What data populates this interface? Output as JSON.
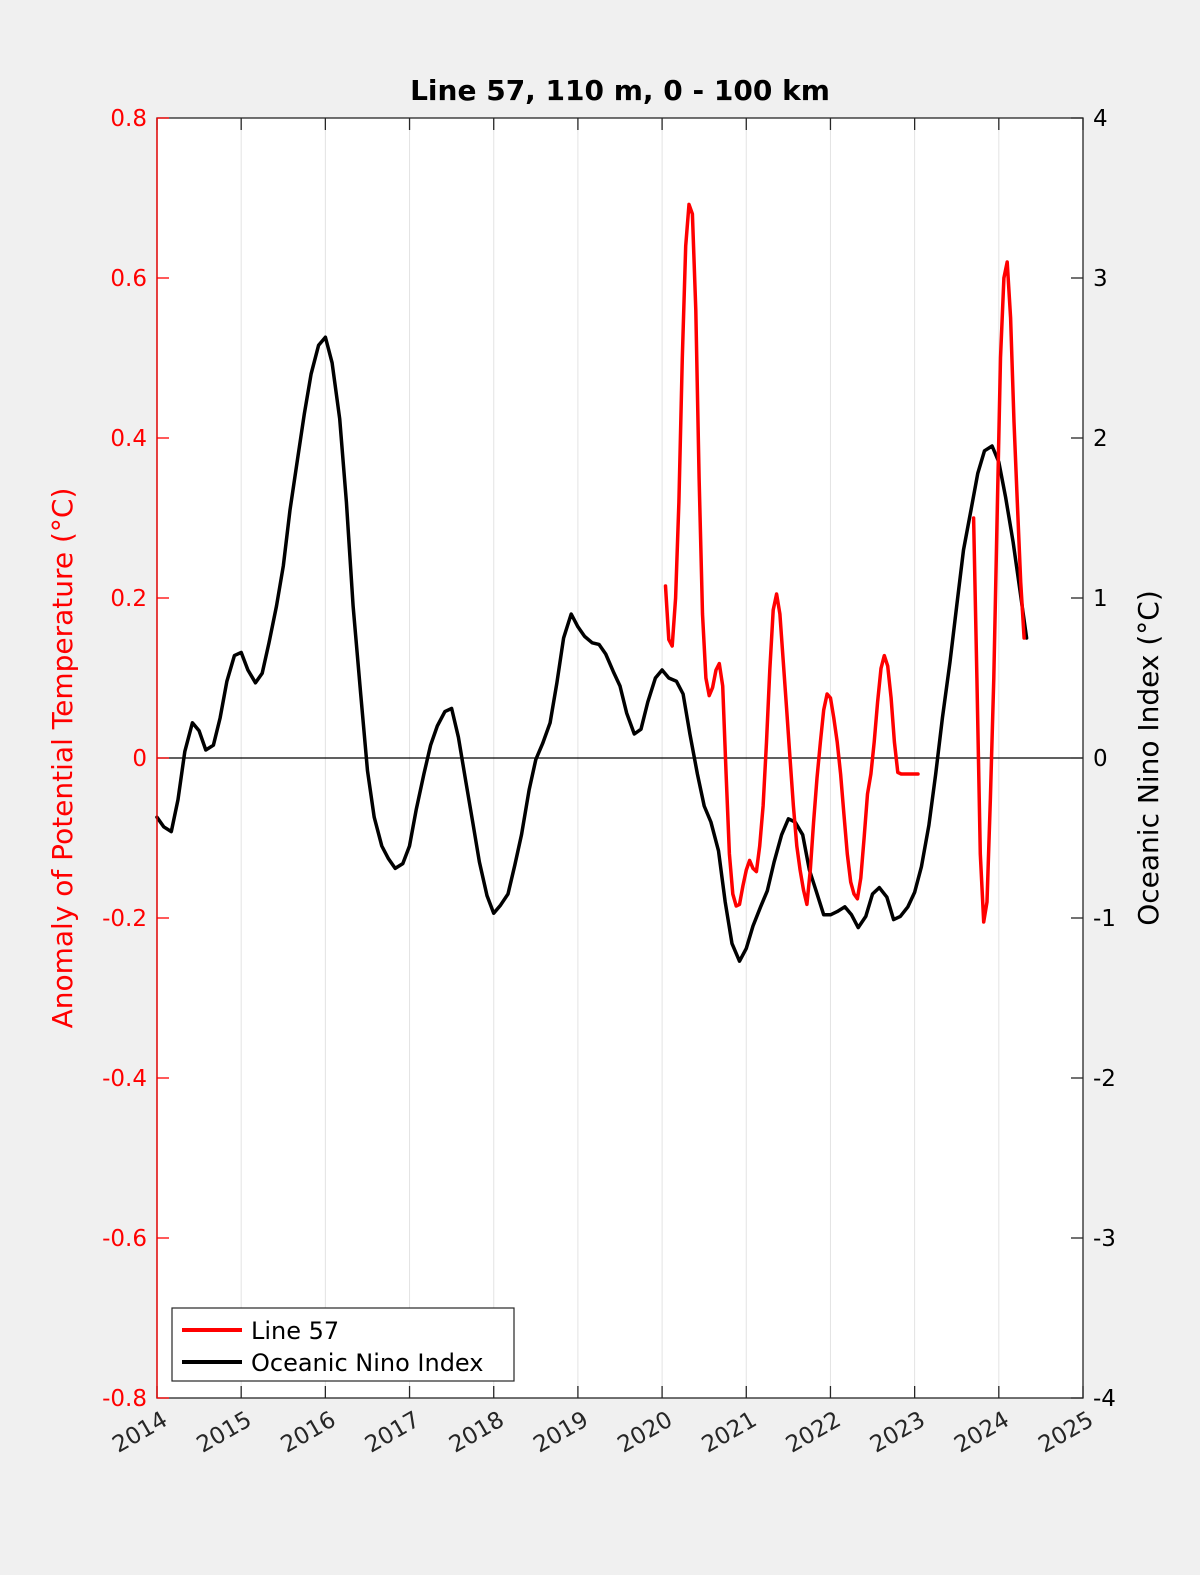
{
  "chart_data": {
    "type": "line",
    "title": "Line 57, 110 m, 0 - 100 km",
    "xlabel": "",
    "ylabel_left": "Anomaly of Potential Temperature (°C)",
    "ylabel_right": "Oceanic Nino Index (°C)",
    "xlim": [
      2014,
      2025
    ],
    "ylim_left": [
      -0.8,
      0.8
    ],
    "ylim_right": [
      -4,
      4
    ],
    "x_ticks": [
      2014,
      2015,
      2016,
      2017,
      2018,
      2019,
      2020,
      2021,
      2022,
      2023,
      2024,
      2025
    ],
    "x_tick_labels": [
      "2014",
      "2015",
      "2016",
      "2017",
      "2018",
      "2019",
      "2020",
      "2021",
      "2022",
      "2023",
      "2024",
      "2025"
    ],
    "y_left_ticks": [
      -0.8,
      -0.6,
      -0.4,
      -0.2,
      0,
      0.2,
      0.4,
      0.6,
      0.8
    ],
    "y_left_tick_labels": [
      "-0.8",
      "-0.6",
      "-0.4",
      "-0.2",
      "0",
      "0.2",
      "0.4",
      "0.6",
      "0.8"
    ],
    "y_right_ticks": [
      -4,
      -3,
      -2,
      -1,
      0,
      1,
      2,
      3,
      4
    ],
    "y_right_tick_labels": [
      "-4",
      "-3",
      "-2",
      "-1",
      "0",
      "1",
      "2",
      "3",
      "4"
    ],
    "grid": "vertical",
    "legend_position": "bottom-left",
    "colors": {
      "line57": "#ff0000",
      "oni": "#000000",
      "left_axis": "#ff0000",
      "right_axis": "#000000"
    },
    "series": [
      {
        "name": "Line 57",
        "axis": "left",
        "segments": [
          {
            "x": [
              2020.04,
              2020.08,
              2020.12,
              2020.16,
              2020.2,
              2020.24,
              2020.28,
              2020.32,
              2020.36,
              2020.4,
              2020.44,
              2020.48,
              2020.52,
              2020.56,
              2020.6,
              2020.64,
              2020.68,
              2020.72,
              2020.76,
              2020.8,
              2020.84,
              2020.88,
              2020.92,
              2020.96,
              2021.0,
              2021.04,
              2021.08,
              2021.12,
              2021.16,
              2021.2,
              2021.24,
              2021.28,
              2021.32,
              2021.36,
              2021.4,
              2021.44,
              2021.48,
              2021.52,
              2021.56,
              2021.6,
              2021.64,
              2021.68,
              2021.72,
              2021.76,
              2021.8,
              2021.84,
              2021.88,
              2021.92,
              2021.96,
              2022.0,
              2022.04,
              2022.08,
              2022.12,
              2022.16,
              2022.2,
              2022.24,
              2022.28,
              2022.32,
              2022.36,
              2022.4,
              2022.44,
              2022.48,
              2022.52,
              2022.56,
              2022.6,
              2022.64,
              2022.68,
              2022.72,
              2022.76,
              2022.8,
              2022.84,
              2022.88,
              2022.92,
              2022.96,
              2023.0,
              2023.04
            ],
            "y": [
              0.215,
              0.148,
              0.14,
              0.2,
              0.32,
              0.5,
              0.64,
              0.692,
              0.68,
              0.56,
              0.35,
              0.18,
              0.1,
              0.078,
              0.088,
              0.11,
              0.118,
              0.09,
              -0.02,
              -0.12,
              -0.17,
              -0.185,
              -0.183,
              -0.16,
              -0.14,
              -0.128,
              -0.138,
              -0.142,
              -0.11,
              -0.06,
              0.02,
              0.11,
              0.185,
              0.205,
              0.18,
              0.12,
              0.06,
              0.0,
              -0.06,
              -0.11,
              -0.14,
              -0.165,
              -0.183,
              -0.14,
              -0.08,
              -0.025,
              0.02,
              0.06,
              0.08,
              0.075,
              0.05,
              0.02,
              -0.02,
              -0.07,
              -0.12,
              -0.155,
              -0.17,
              -0.176,
              -0.15,
              -0.1,
              -0.045,
              -0.02,
              0.02,
              0.07,
              0.112,
              0.128,
              0.115,
              0.075,
              0.02,
              -0.018,
              -0.02,
              -0.02,
              -0.02,
              -0.02,
              -0.02,
              -0.02
            ]
          },
          {
            "x": [
              2023.7,
              2023.74,
              2023.78,
              2023.82,
              2023.86,
              2023.9,
              2023.94,
              2023.98,
              2024.02,
              2024.06,
              2024.1,
              2024.14,
              2024.18,
              2024.22,
              2024.26,
              2024.3
            ],
            "y": [
              0.3,
              0.1,
              -0.12,
              -0.205,
              -0.18,
              -0.05,
              0.1,
              0.3,
              0.5,
              0.6,
              0.62,
              0.55,
              0.42,
              0.32,
              0.22,
              0.15
            ]
          }
        ]
      },
      {
        "name": "Oceanic Nino Index",
        "axis": "right",
        "segments": [
          {
            "x": [
              2014.0,
              2014.08,
              2014.17,
              2014.25,
              2014.33,
              2014.42,
              2014.5,
              2014.58,
              2014.67,
              2014.75,
              2014.83,
              2014.92,
              2015.0,
              2015.08,
              2015.17,
              2015.25,
              2015.33,
              2015.42,
              2015.5,
              2015.58,
              2015.67,
              2015.75,
              2015.83,
              2015.92,
              2016.0,
              2016.08,
              2016.17,
              2016.25,
              2016.33,
              2016.42,
              2016.5,
              2016.58,
              2016.67,
              2016.75,
              2016.83,
              2016.92,
              2017.0,
              2017.08,
              2017.17,
              2017.25,
              2017.33,
              2017.42,
              2017.5,
              2017.58,
              2017.67,
              2017.75,
              2017.83,
              2017.92,
              2018.0,
              2018.08,
              2018.17,
              2018.25,
              2018.33,
              2018.42,
              2018.5,
              2018.58,
              2018.67,
              2018.75,
              2018.83,
              2018.92,
              2019.0,
              2019.08,
              2019.17,
              2019.25,
              2019.33,
              2019.42,
              2019.5,
              2019.58,
              2019.67,
              2019.75,
              2019.83,
              2019.92,
              2020.0,
              2020.08,
              2020.17,
              2020.25,
              2020.33,
              2020.42,
              2020.5,
              2020.58,
              2020.67,
              2020.75,
              2020.83,
              2020.92,
              2021.0,
              2021.08,
              2021.17,
              2021.25,
              2021.33,
              2021.42,
              2021.5,
              2021.58,
              2021.67,
              2021.75,
              2021.83,
              2021.92,
              2022.0,
              2022.08,
              2022.17,
              2022.25,
              2022.33,
              2022.42,
              2022.5,
              2022.58,
              2022.67,
              2022.75,
              2022.83,
              2022.92,
              2023.0,
              2023.08,
              2023.17,
              2023.25,
              2023.33,
              2023.42,
              2023.5,
              2023.58,
              2023.67,
              2023.75,
              2023.83,
              2023.92,
              2024.0,
              2024.08,
              2024.17,
              2024.25,
              2024.33
            ],
            "y": [
              -0.37,
              -0.43,
              -0.46,
              -0.26,
              0.04,
              0.22,
              0.17,
              0.05,
              0.08,
              0.25,
              0.48,
              0.64,
              0.66,
              0.55,
              0.47,
              0.53,
              0.72,
              0.95,
              1.2,
              1.55,
              1.87,
              2.15,
              2.4,
              2.58,
              2.63,
              2.47,
              2.12,
              1.6,
              0.95,
              0.4,
              -0.08,
              -0.37,
              -0.55,
              -0.63,
              -0.69,
              -0.66,
              -0.55,
              -0.32,
              -0.1,
              0.08,
              0.2,
              0.29,
              0.31,
              0.13,
              -0.15,
              -0.4,
              -0.65,
              -0.86,
              -0.97,
              -0.92,
              -0.85,
              -0.67,
              -0.48,
              -0.2,
              -0.01,
              0.09,
              0.22,
              0.47,
              0.75,
              0.9,
              0.82,
              0.76,
              0.72,
              0.71,
              0.65,
              0.54,
              0.45,
              0.28,
              0.15,
              0.18,
              0.35,
              0.5,
              0.55,
              0.5,
              0.48,
              0.4,
              0.15,
              -0.1,
              -0.3,
              -0.4,
              -0.58,
              -0.9,
              -1.16,
              -1.27,
              -1.19,
              -1.05,
              -0.93,
              -0.83,
              -0.65,
              -0.48,
              -0.38,
              -0.4,
              -0.48,
              -0.7,
              -0.83,
              -0.98,
              -0.98,
              -0.96,
              -0.93,
              -0.98,
              -1.06,
              -0.99,
              -0.85,
              -0.81,
              -0.87,
              -1.01,
              -0.99,
              -0.93,
              -0.84,
              -0.68,
              -0.42,
              -0.1,
              0.25,
              0.6,
              0.95,
              1.3,
              1.55,
              1.78,
              1.92,
              1.95,
              1.85,
              1.63,
              1.35,
              1.05,
              0.75
            ]
          }
        ]
      }
    ]
  }
}
